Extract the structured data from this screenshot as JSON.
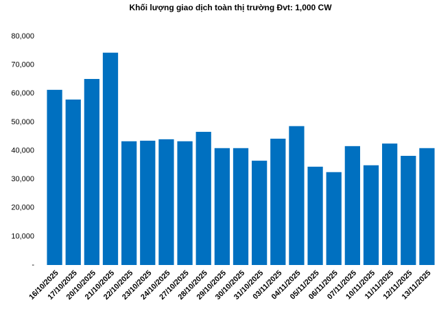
{
  "chart_data": {
    "type": "bar",
    "title": "Khối lượng giao dịch toàn thị trường Đvt: 1,000 CW",
    "categories": [
      "16/10/2025",
      "17/10/2025",
      "20/10/2025",
      "21/10/2025",
      "22/10/2025",
      "23/10/2025",
      "24/10/2025",
      "27/10/2025",
      "28/10/2025",
      "29/10/2025",
      "30/10/2025",
      "31/10/2025",
      "03/11/2025",
      "04/11/2025",
      "05/11/2025",
      "06/11/2025",
      "07/11/2025",
      "10/11/2025",
      "11/11/2025",
      "12/11/2025",
      "13/11/2025"
    ],
    "values": [
      61300,
      57900,
      65100,
      74300,
      43300,
      43500,
      44000,
      43300,
      46600,
      40900,
      40900,
      36500,
      44200,
      48600,
      34400,
      32500,
      41600,
      34900,
      42500,
      38200,
      40900
    ],
    "color": "#0070c0",
    "ylim": [
      0,
      80000
    ],
    "yticks": [
      {
        "value": 0,
        "label": "-"
      },
      {
        "value": 10000,
        "label": "10,000"
      },
      {
        "value": 20000,
        "label": "20,000"
      },
      {
        "value": 30000,
        "label": "30,000"
      },
      {
        "value": 40000,
        "label": "40,000"
      },
      {
        "value": 50000,
        "label": "50,000"
      },
      {
        "value": 60000,
        "label": "60,000"
      },
      {
        "value": 70000,
        "label": "70,000"
      },
      {
        "value": 80000,
        "label": "80,000"
      }
    ],
    "grid": false
  }
}
